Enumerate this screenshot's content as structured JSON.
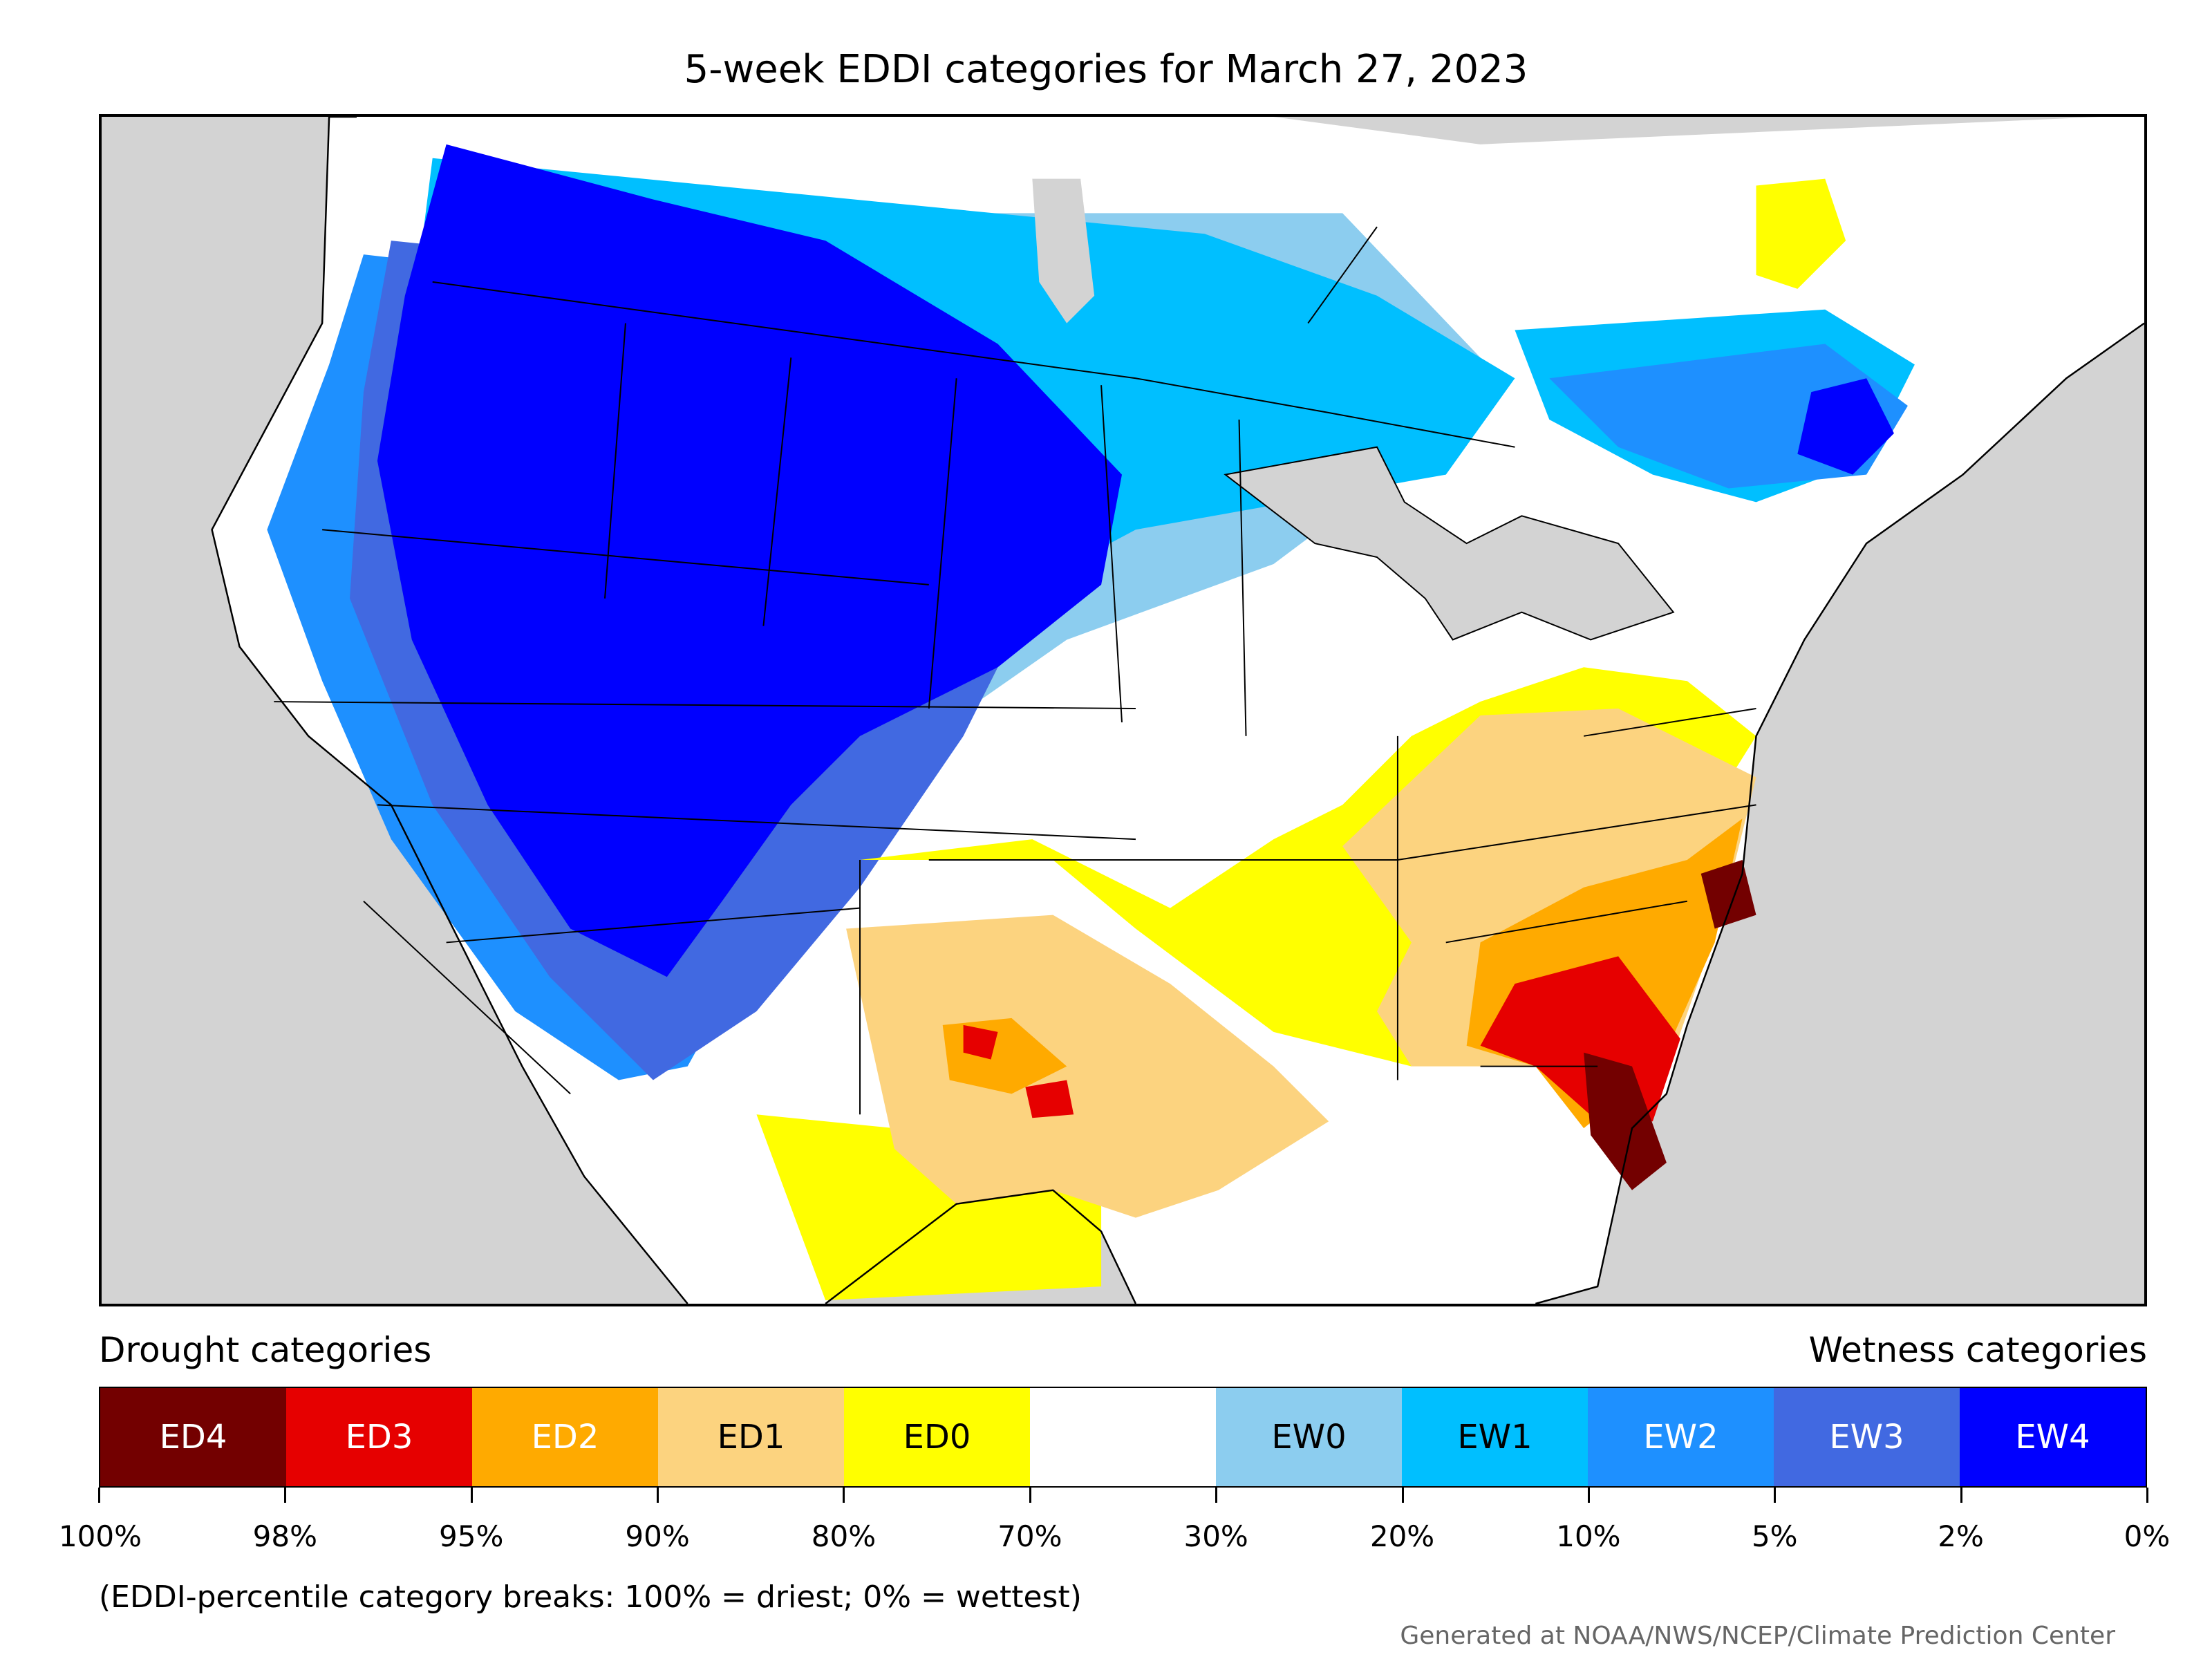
{
  "title": "5-week EDDI categories for March 27, 2023",
  "legend": {
    "drought_heading": "Drought categories",
    "wetness_heading": "Wetness categories",
    "categories": [
      {
        "label": "ED4",
        "color": "#730000",
        "text_color": "#ffffff"
      },
      {
        "label": "ED3",
        "color": "#e60000",
        "text_color": "#ffffff"
      },
      {
        "label": "ED2",
        "color": "#ffaa00",
        "text_color": "#ffffff"
      },
      {
        "label": "ED1",
        "color": "#fcd37f",
        "text_color": "#000000"
      },
      {
        "label": "ED0",
        "color": "#ffff00",
        "text_color": "#000000"
      },
      {
        "label": "",
        "color": "#ffffff",
        "text_color": "#000000"
      },
      {
        "label": "EW0",
        "color": "#8ccdef",
        "text_color": "#000000"
      },
      {
        "label": "EW1",
        "color": "#00bfff",
        "text_color": "#000000"
      },
      {
        "label": "EW2",
        "color": "#1e90ff",
        "text_color": "#ffffff"
      },
      {
        "label": "EW3",
        "color": "#4169e1",
        "text_color": "#ffffff"
      },
      {
        "label": "EW4",
        "color": "#0000ff",
        "text_color": "#ffffff"
      }
    ],
    "breaks": [
      "100%",
      "98%",
      "95%",
      "90%",
      "80%",
      "70%",
      "30%",
      "20%",
      "10%",
      "5%",
      "2%",
      "0%"
    ],
    "note": "(EDDI-percentile category breaks: 100% = driest; 0% = wettest)"
  },
  "credit": "Generated at NOAA/NWS/NCEP/Climate Prediction Center",
  "map_colors": {
    "ocean": "#d3d3d3",
    "land": "#ffffff",
    "border": "#000000"
  }
}
